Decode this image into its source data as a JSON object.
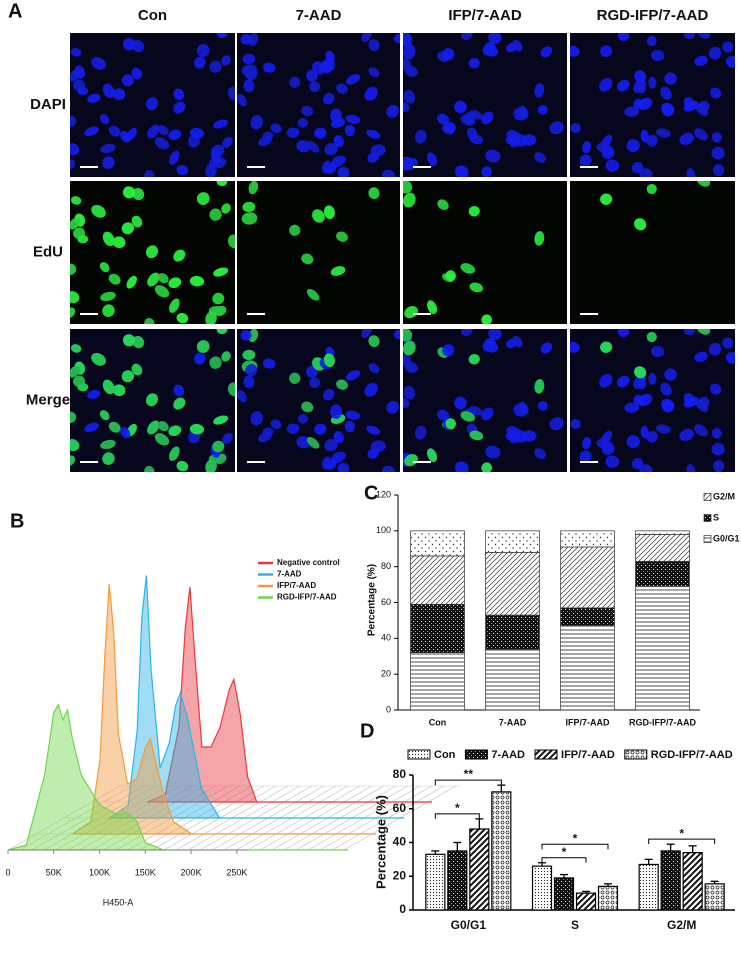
{
  "panel_a": {
    "label": "A",
    "columns": [
      "Con",
      "7-AAD",
      "IFP/7-AAD",
      "RGD-IFP/7-AAD"
    ],
    "rows": [
      "DAPI",
      "EdU",
      "Merge"
    ]
  },
  "chart_data": [
    {
      "type": "ridge",
      "label": "B",
      "xlabel": "H450-A",
      "xlim": [
        0,
        260000
      ],
      "xticks": [
        0,
        {
          "value": 50000,
          "label": "50K"
        },
        {
          "value": 100000,
          "label": "100K"
        },
        {
          "value": 150000,
          "label": "150K"
        },
        {
          "value": 200000,
          "label": "200K"
        },
        {
          "value": 250000,
          "label": "250K"
        }
      ],
      "series": [
        {
          "name": "Negative control",
          "color": "#e8383d",
          "x": [
            60000,
            80000,
            95000,
            102000,
            107000,
            112000,
            120000,
            130000,
            140000,
            150000,
            155000,
            162000,
            170000,
            180000
          ],
          "values": [
            0,
            3,
            30,
            70,
            86,
            60,
            22,
            22,
            30,
            45,
            49,
            35,
            10,
            0
          ]
        },
        {
          "name": "7-AAD",
          "color": "#2cb3e8",
          "x": [
            50000,
            70000,
            80000,
            85000,
            90000,
            95000,
            105000,
            115000,
            122000,
            127000,
            135000,
            150000,
            170000
          ],
          "values": [
            0,
            5,
            35,
            80,
            97,
            60,
            20,
            30,
            45,
            50,
            40,
            12,
            0
          ]
        },
        {
          "name": "IFP/7-AAD",
          "color": "#f39a3a",
          "x": [
            40000,
            60000,
            70000,
            75000,
            80000,
            85000,
            90000,
            100000,
            110000,
            120000,
            125000,
            130000,
            140000,
            150000,
            170000
          ],
          "values": [
            0,
            5,
            30,
            70,
            100,
            80,
            40,
            20,
            22,
            35,
            38,
            30,
            15,
            5,
            0
          ]
        },
        {
          "name": "RGD-IFP/7-AAD",
          "color": "#6fd64a",
          "x": [
            0,
            20000,
            40000,
            50000,
            55000,
            60000,
            65000,
            70000,
            80000,
            100000,
            120000,
            130000,
            140000,
            150000,
            170000
          ],
          "values": [
            0,
            2,
            30,
            55,
            58,
            52,
            56,
            45,
            30,
            18,
            14,
            15,
            12,
            3,
            0
          ]
        }
      ]
    },
    {
      "type": "stacked_bar",
      "label": "C",
      "ylabel": "Percentage (%)",
      "categories": [
        "Con",
        "7-AAD",
        "IFP/7-AAD",
        "RGD-IFP/7-AAD"
      ],
      "ylim": [
        0,
        120
      ],
      "yticks": [
        0,
        20,
        40,
        60,
        80,
        100,
        120
      ],
      "series": [
        {
          "name": "G0/G1",
          "pattern": "hlines",
          "values": [
            32,
            34,
            47,
            69
          ]
        },
        {
          "name": "S",
          "pattern": "dark",
          "values": [
            27,
            19,
            10,
            14
          ]
        },
        {
          "name": "G2/M",
          "pattern": "diag",
          "values": [
            27,
            35,
            34,
            15
          ]
        },
        {
          "pattern": "sparse",
          "values": [
            14,
            12,
            9,
            2
          ]
        }
      ]
    },
    {
      "type": "grouped_bar",
      "label": "D",
      "ylabel": "Percentage (%)",
      "categories": [
        "G0/G1",
        "S",
        "G2/M"
      ],
      "ylim": [
        0,
        80
      ],
      "yticks": [
        0,
        20,
        40,
        60,
        80
      ],
      "series": [
        {
          "name": "Con",
          "pattern": "fine",
          "values": [
            33,
            26,
            27
          ],
          "errors": [
            2,
            2,
            3
          ]
        },
        {
          "name": "7-AAD",
          "pattern": "dark",
          "values": [
            35,
            19,
            35
          ],
          "errors": [
            5,
            2,
            4
          ]
        },
        {
          "name": "IFP/7-AAD",
          "pattern": "bold",
          "values": [
            48,
            10,
            34
          ],
          "errors": [
            6,
            1,
            4
          ]
        },
        {
          "name": "RGD-IFP/7-AAD",
          "pattern": "circles",
          "values": [
            70,
            14,
            15.5
          ],
          "errors": [
            4,
            1.5,
            1.5
          ]
        }
      ],
      "annotations": [
        {
          "text": "*",
          "category": "G0/G1",
          "between": [
            "Con",
            "IFP/7-AAD"
          ]
        },
        {
          "text": "**",
          "category": "G0/G1",
          "between": [
            "Con",
            "RGD-IFP/7-AAD"
          ]
        },
        {
          "text": "*",
          "category": "S",
          "between": [
            "Con",
            "IFP/7-AAD"
          ]
        },
        {
          "text": "*",
          "category": "S",
          "between": [
            "Con",
            "RGD-IFP/7-AAD"
          ]
        },
        {
          "text": "*",
          "category": "G2/M",
          "between": [
            "Con",
            "RGD-IFP/7-AAD"
          ]
        }
      ]
    }
  ]
}
